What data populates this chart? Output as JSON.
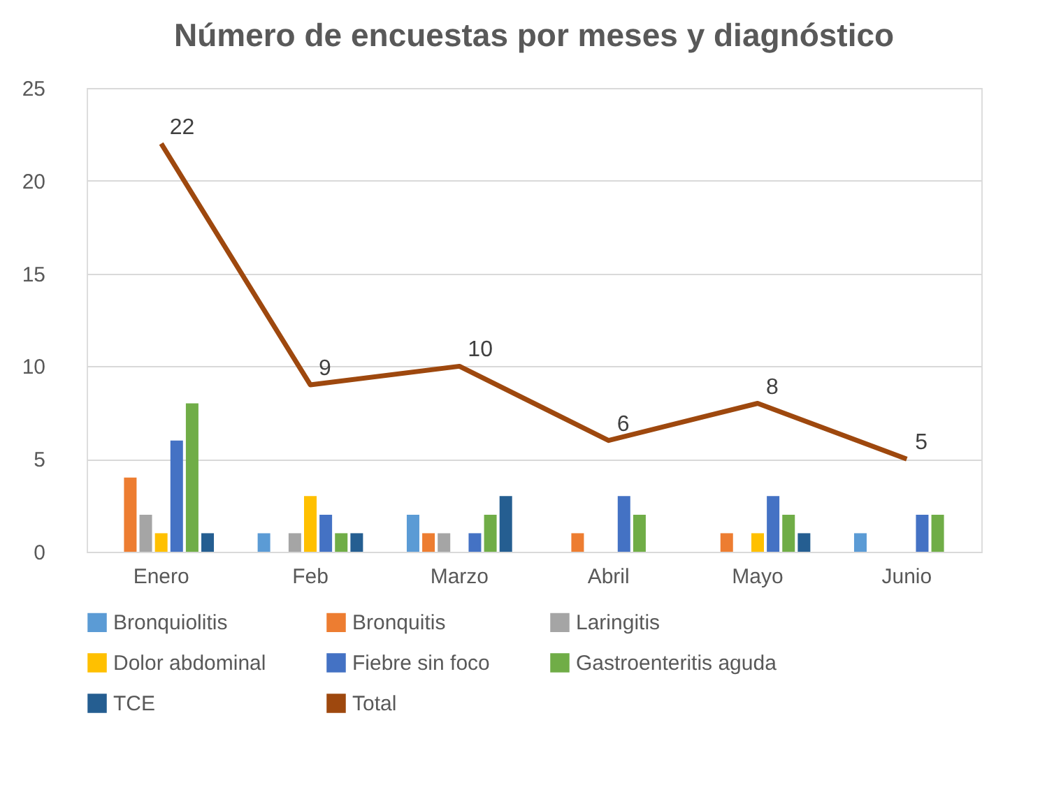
{
  "chart_data": {
    "type": "bar",
    "title": "Número de encuestas por meses y diagnóstico",
    "categories": [
      "Enero",
      "Feb",
      "Marzo",
      "Abril",
      "Mayo",
      "Junio"
    ],
    "series": [
      {
        "name": "Bronquiolitis",
        "color": "#5b9bd5",
        "values": [
          0,
          1,
          2,
          0,
          0,
          1
        ]
      },
      {
        "name": "Bronquitis",
        "color": "#ed7d31",
        "values": [
          4,
          0,
          1,
          1,
          1,
          0
        ]
      },
      {
        "name": "Laringitis",
        "color": "#a5a5a5",
        "values": [
          2,
          1,
          1,
          0,
          0,
          0
        ]
      },
      {
        "name": "Dolor abdominal",
        "color": "#ffc000",
        "values": [
          1,
          3,
          0,
          0,
          1,
          0
        ]
      },
      {
        "name": "Fiebre sin foco",
        "color": "#4472c4",
        "values": [
          6,
          2,
          1,
          3,
          3,
          2
        ]
      },
      {
        "name": "Gastroenteritis aguda",
        "color": "#70ad47",
        "values": [
          8,
          1,
          2,
          2,
          2,
          2
        ]
      },
      {
        "name": "TCE",
        "color": "#255e91",
        "values": [
          1,
          1,
          3,
          0,
          1,
          0
        ]
      },
      {
        "name": "Total",
        "color": "#9e480e",
        "type": "line",
        "values": [
          22,
          9,
          10,
          6,
          8,
          5
        ],
        "value_labels": [
          "22",
          "9",
          "10",
          "6",
          "8",
          "5"
        ]
      }
    ],
    "ylim": [
      0,
      25
    ],
    "yticks": [
      0,
      5,
      10,
      15,
      20,
      25
    ],
    "grid": "y",
    "legend": "bottom",
    "marker": "none",
    "line_style": "solid"
  }
}
